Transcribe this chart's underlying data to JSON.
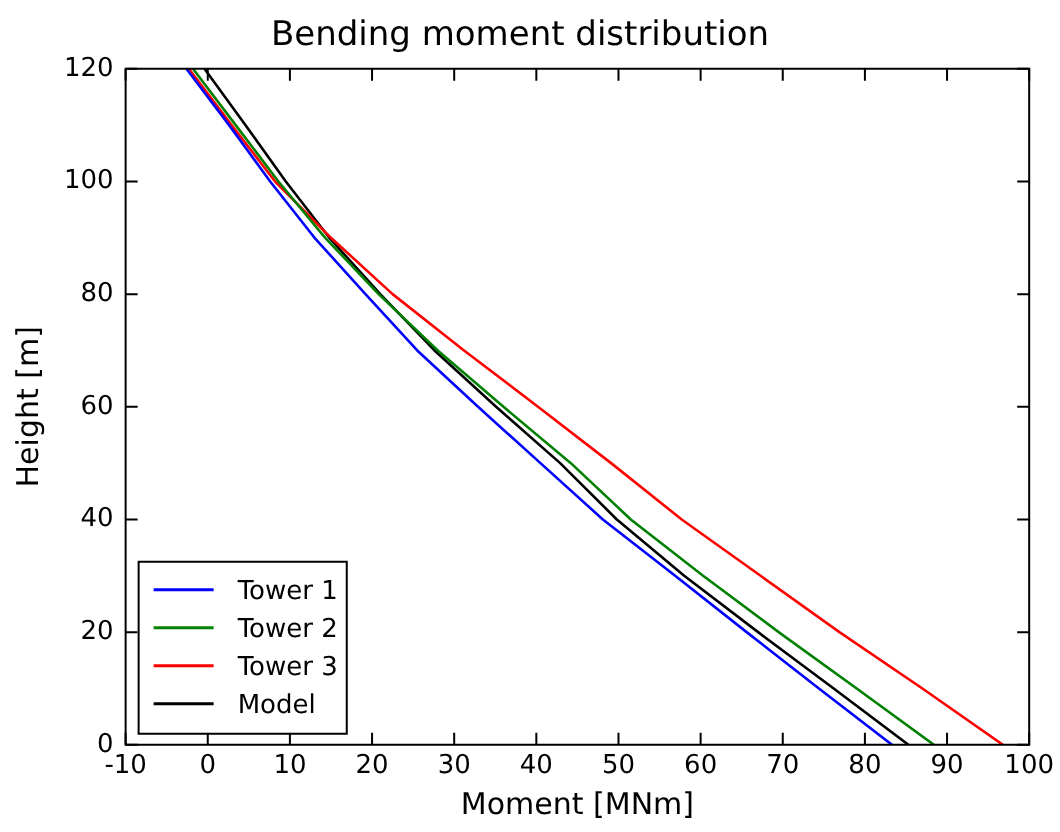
{
  "chart_data": {
    "type": "line",
    "title": "Bending moment distribution",
    "xlabel": "Moment [MNm]",
    "ylabel": "Height [m]",
    "xlim": [
      -10,
      100
    ],
    "xticks": [
      -10,
      0,
      10,
      20,
      30,
      40,
      50,
      60,
      70,
      80,
      90,
      100
    ],
    "ylim": [
      0,
      120
    ],
    "yticks": [
      0,
      20,
      40,
      60,
      80,
      100,
      120
    ],
    "grid": false,
    "legend": "bottom left",
    "marker": "none",
    "line_style": "solid",
    "series": [
      {
        "name": "Tower 1",
        "color": "#0000ff",
        "x": [
          83.3,
          74.4,
          65.6,
          56.9,
          48.1,
          40.5,
          32.9,
          25.5,
          19.2,
          13.0,
          7.6,
          2.6,
          -2.6
        ],
        "values": [
          0,
          10,
          20,
          30,
          40,
          50,
          60,
          70,
          80,
          90,
          100,
          110,
          120
        ]
      },
      {
        "name": "Tower 2",
        "color": "#008000",
        "x": [
          88.4,
          79.0,
          69.5,
          60.3,
          51.5,
          44.2,
          36.0,
          28.0,
          20.8,
          14.3,
          8.6,
          3.4,
          -1.8
        ],
        "values": [
          0,
          10,
          20,
          30,
          40,
          50,
          60,
          70,
          80,
          90,
          100,
          110,
          120
        ]
      },
      {
        "name": "Tower 3",
        "color": "#ff0000",
        "x": [
          96.8,
          87.0,
          76.9,
          67.3,
          57.7,
          49.1,
          40.2,
          31.2,
          22.5,
          15.0,
          8.2,
          2.9,
          -2.3
        ],
        "values": [
          0,
          10,
          20,
          30,
          40,
          50,
          60,
          70,
          80,
          90,
          100,
          110,
          120
        ]
      },
      {
        "name": "Model",
        "color": "#000000",
        "x": [
          85.3,
          76.2,
          67.0,
          58.0,
          49.8,
          42.9,
          35.1,
          27.6,
          21.0,
          14.8,
          9.5,
          4.6,
          -0.4
        ],
        "values": [
          0,
          10,
          20,
          30,
          40,
          50,
          60,
          70,
          80,
          90,
          100,
          110,
          120
        ]
      }
    ]
  }
}
